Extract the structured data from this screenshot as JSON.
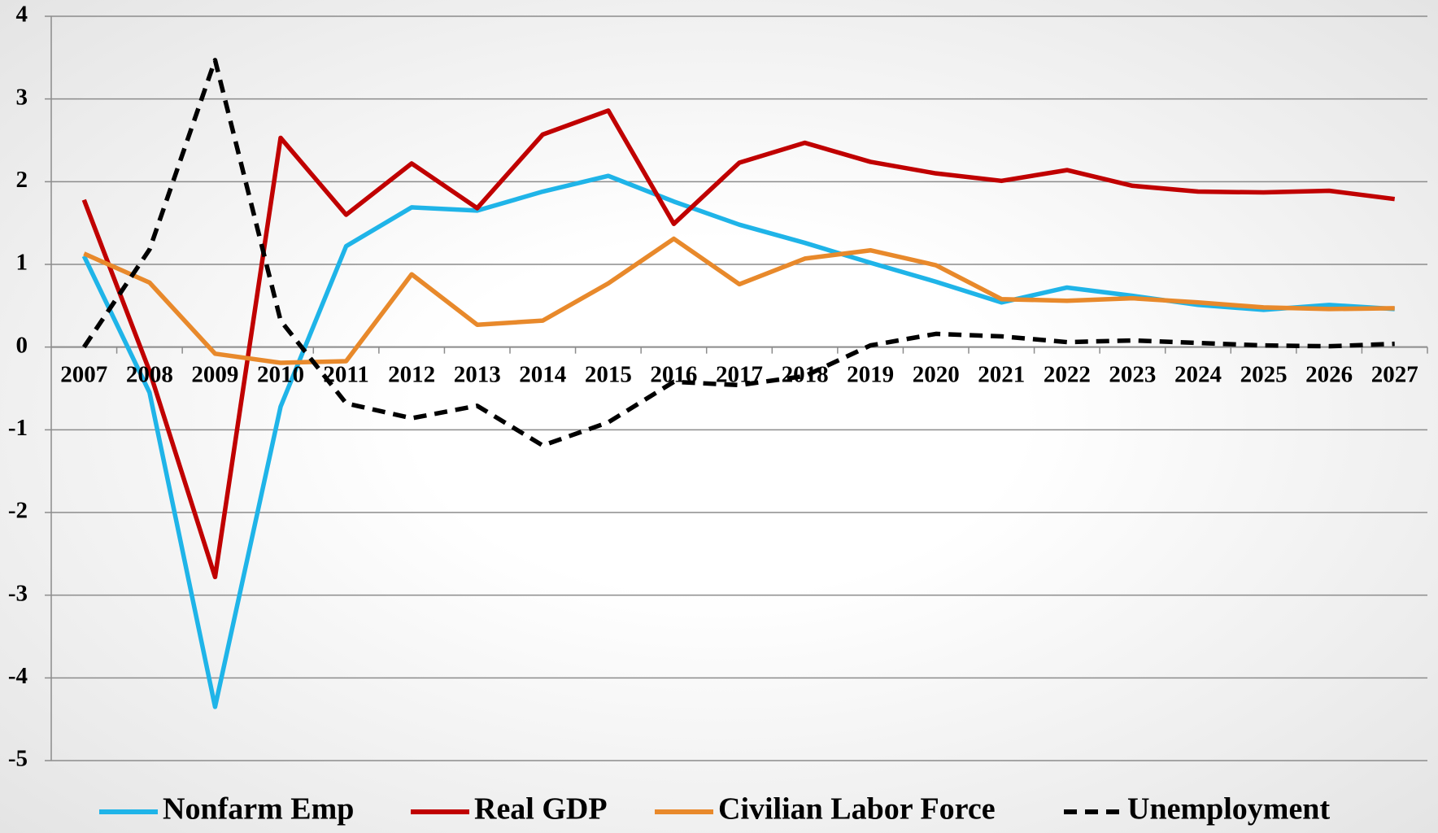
{
  "chart_data": {
    "type": "line",
    "categories": [
      "2007",
      "2008",
      "2009",
      "2010",
      "2011",
      "2012",
      "2013",
      "2014",
      "2015",
      "2016",
      "2017",
      "2018",
      "2019",
      "2020",
      "2021",
      "2022",
      "2023",
      "2024",
      "2025",
      "2026",
      "2027"
    ],
    "series": [
      {
        "name": "Nonfarm Emp",
        "color": "#1fb4e8",
        "values": [
          1.1,
          -0.55,
          -4.35,
          -0.72,
          1.22,
          1.69,
          1.65,
          1.88,
          2.07,
          1.76,
          1.48,
          1.26,
          1.02,
          0.79,
          0.54,
          0.72,
          0.62,
          0.51,
          0.45,
          0.51,
          0.46
        ]
      },
      {
        "name": "Real GDP",
        "color": "#c00000",
        "values": [
          1.78,
          -0.29,
          -2.78,
          2.53,
          1.6,
          2.22,
          1.68,
          2.57,
          2.86,
          1.49,
          2.23,
          2.47,
          2.24,
          2.1,
          2.01,
          2.14,
          1.95,
          1.88,
          1.87,
          1.89,
          1.79
        ]
      },
      {
        "name": "Civilian Labor Force",
        "color": "#e8892b",
        "values": [
          1.13,
          0.78,
          -0.08,
          -0.19,
          -0.17,
          0.88,
          0.27,
          0.32,
          0.77,
          1.31,
          0.76,
          1.07,
          1.17,
          0.99,
          0.58,
          0.56,
          0.59,
          0.54,
          0.48,
          0.46,
          0.47
        ]
      },
      {
        "name": "Unemployment",
        "color": "#000000",
        "dashed": true,
        "values": [
          0,
          1.18,
          3.47,
          0.32,
          -0.68,
          -0.86,
          -0.71,
          -1.19,
          -0.91,
          -0.42,
          -0.46,
          -0.35,
          0.02,
          0.16,
          0.13,
          0.06,
          0.08,
          0.05,
          0.02,
          0.01,
          0.04
        ]
      }
    ],
    "ylim": [
      -5,
      4
    ],
    "yticks": [
      -5,
      -4,
      -3,
      -2,
      -1,
      0,
      1,
      2,
      3,
      4
    ],
    "grid": true,
    "legend": "bottom"
  }
}
